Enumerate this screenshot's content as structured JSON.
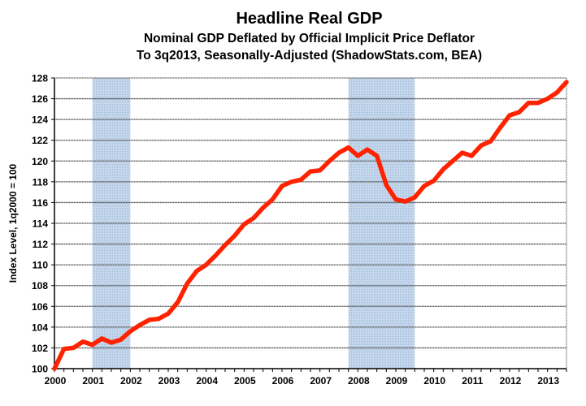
{
  "chart_data": {
    "type": "line",
    "title": "Headline Real GDP",
    "subtitle_lines": [
      "Nominal GDP Deflated by Official Implicit Price Deflator",
      "To 3q2013, Seasonally-Adjusted (ShadowStats.com, BEA)"
    ],
    "xlabel": "",
    "ylabel": "Index Level, 1q2000 = 100",
    "ylim": [
      100,
      128
    ],
    "yticks": [
      100,
      102,
      104,
      106,
      108,
      110,
      112,
      114,
      116,
      118,
      120,
      122,
      124,
      126,
      128
    ],
    "xlim_quarters": [
      "2000Q1",
      "2013Q3"
    ],
    "xtick_labels": [
      "2000",
      "2001",
      "2002",
      "2003",
      "2004",
      "2005",
      "2006",
      "2007",
      "2008",
      "2009",
      "2010",
      "2011",
      "2012",
      "2013"
    ],
    "grid": "horizontal",
    "legend": "none",
    "line_color": "#ff2200",
    "recession_color": "#b8cfe8",
    "recessions": [
      {
        "start": "2001Q1",
        "end": "2001Q4"
      },
      {
        "start": "2007Q4",
        "end": "2009Q2"
      }
    ],
    "series": [
      {
        "name": "Headline Real GDP",
        "start_quarter": "2000Q1",
        "values": [
          100.0,
          101.9,
          102.0,
          102.6,
          102.3,
          102.9,
          102.5,
          102.8,
          103.6,
          104.2,
          104.7,
          104.8,
          105.3,
          106.4,
          108.2,
          109.4,
          110.0,
          110.9,
          111.9,
          112.8,
          113.9,
          114.5,
          115.5,
          116.3,
          117.6,
          118.0,
          118.2,
          119.0,
          119.1,
          120.0,
          120.8,
          121.3,
          120.5,
          121.1,
          120.5,
          117.7,
          116.3,
          116.1,
          116.5,
          117.6,
          118.1,
          119.2,
          120.0,
          120.8,
          120.5,
          121.5,
          121.9,
          123.2,
          124.4,
          124.7,
          125.6,
          125.6,
          126.0,
          126.6,
          127.6
        ]
      }
    ]
  }
}
